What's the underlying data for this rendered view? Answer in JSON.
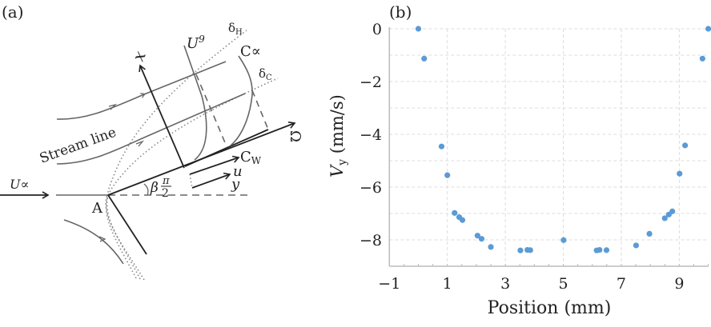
{
  "panel_a": {
    "label": "(a)",
    "labels": {
      "x_axis": "x",
      "u_profile": "U",
      "u_profile_sup": "9",
      "delta_h": "δ",
      "delta_h_sub": "H",
      "c_profile": "C∝",
      "delta_c": "δ",
      "delta_c_sub": "C",
      "omega": "Ω",
      "c_wall": "C",
      "c_wall_sub": "W",
      "u": "u",
      "y": "y",
      "stream_line": "Stream line",
      "u_inf": "U∝",
      "point_a": "A",
      "angle": "β",
      "angle_num": "π",
      "angle_den": "2"
    }
  },
  "chart_data": {
    "panel_label": "(b)",
    "type": "scatter",
    "xlabel": "Position (mm)",
    "ylabel": "V",
    "ylabel_sub": "y",
    "ylabel_unit": "(mm/s)",
    "xlim": [
      -1,
      10
    ],
    "ylim": [
      -9,
      0
    ],
    "xticks": [
      -1,
      1,
      3,
      5,
      7,
      9
    ],
    "xtick_labels": [
      "−1",
      "1",
      "3",
      "5",
      "7",
      "9"
    ],
    "yticks": [
      0,
      -2,
      -4,
      -6,
      -8
    ],
    "ytick_labels": [
      "0",
      "−2",
      "−4",
      "−6",
      "−8"
    ],
    "grid": true,
    "marker_color": "#5b9bd5",
    "points": [
      {
        "x": 0.0,
        "y": 0.0
      },
      {
        "x": 0.2,
        "y": -1.13
      },
      {
        "x": 0.8,
        "y": -4.46
      },
      {
        "x": 1.0,
        "y": -5.55
      },
      {
        "x": 1.25,
        "y": -6.98
      },
      {
        "x": 1.41,
        "y": -7.14
      },
      {
        "x": 1.52,
        "y": -7.25
      },
      {
        "x": 2.04,
        "y": -7.84
      },
      {
        "x": 2.18,
        "y": -7.96
      },
      {
        "x": 2.5,
        "y": -8.27
      },
      {
        "x": 3.52,
        "y": -8.4
      },
      {
        "x": 3.76,
        "y": -8.38
      },
      {
        "x": 3.86,
        "y": -8.39
      },
      {
        "x": 5.01,
        "y": -8.01
      },
      {
        "x": 6.15,
        "y": -8.4
      },
      {
        "x": 6.25,
        "y": -8.38
      },
      {
        "x": 6.49,
        "y": -8.39
      },
      {
        "x": 7.51,
        "y": -8.21
      },
      {
        "x": 7.97,
        "y": -7.77
      },
      {
        "x": 8.5,
        "y": -7.18
      },
      {
        "x": 8.64,
        "y": -7.04
      },
      {
        "x": 8.76,
        "y": -6.92
      },
      {
        "x": 9.01,
        "y": -5.49
      },
      {
        "x": 9.2,
        "y": -4.42
      },
      {
        "x": 9.8,
        "y": -1.13
      },
      {
        "x": 10.0,
        "y": 0.0
      }
    ]
  }
}
